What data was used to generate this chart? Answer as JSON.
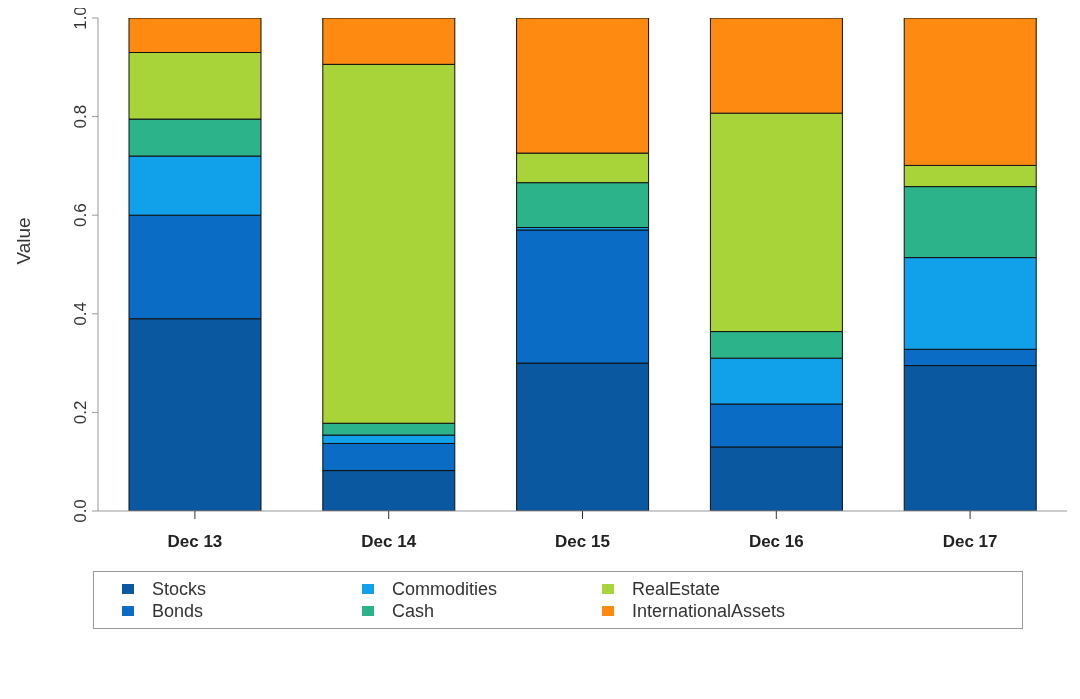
{
  "chart_data": {
    "type": "bar",
    "stacked": true,
    "ylabel": "Value",
    "categories": [
      "Dec 13",
      "Dec 14",
      "Dec 15",
      "Dec 16",
      "Dec 17"
    ],
    "series": [
      {
        "name": "Stocks",
        "color": "#0a58a0",
        "values": [
          0.39,
          0.082,
          0.3,
          0.13,
          0.295
        ]
      },
      {
        "name": "Bonds",
        "color": "#0b6cc6",
        "values": [
          0.21,
          0.055,
          0.27,
          0.087,
          0.033
        ]
      },
      {
        "name": "Commodities",
        "color": "#11a0ea",
        "values": [
          0.12,
          0.017,
          0.005,
          0.093,
          0.186
        ]
      },
      {
        "name": "Cash",
        "color": "#2db38a",
        "values": [
          0.075,
          0.024,
          0.091,
          0.054,
          0.144
        ]
      },
      {
        "name": "RealEstate",
        "color": "#a8d43a",
        "values": [
          0.135,
          0.728,
          0.06,
          0.443,
          0.043
        ]
      },
      {
        "name": "InternationalAssets",
        "color": "#ff8a12",
        "values": [
          0.07,
          0.094,
          0.274,
          0.193,
          0.299
        ]
      }
    ],
    "ylim": [
      0,
      1
    ],
    "yticks": [
      {
        "value": 0,
        "label": "0.0"
      },
      {
        "value": 0.2,
        "label": "0.2"
      },
      {
        "value": 0.4,
        "label": "0.4"
      },
      {
        "value": 0.6,
        "label": "0.6"
      },
      {
        "value": 0.8,
        "label": "0.8"
      },
      {
        "value": 1,
        "label": "1.0"
      }
    ],
    "legend": "bottom"
  }
}
